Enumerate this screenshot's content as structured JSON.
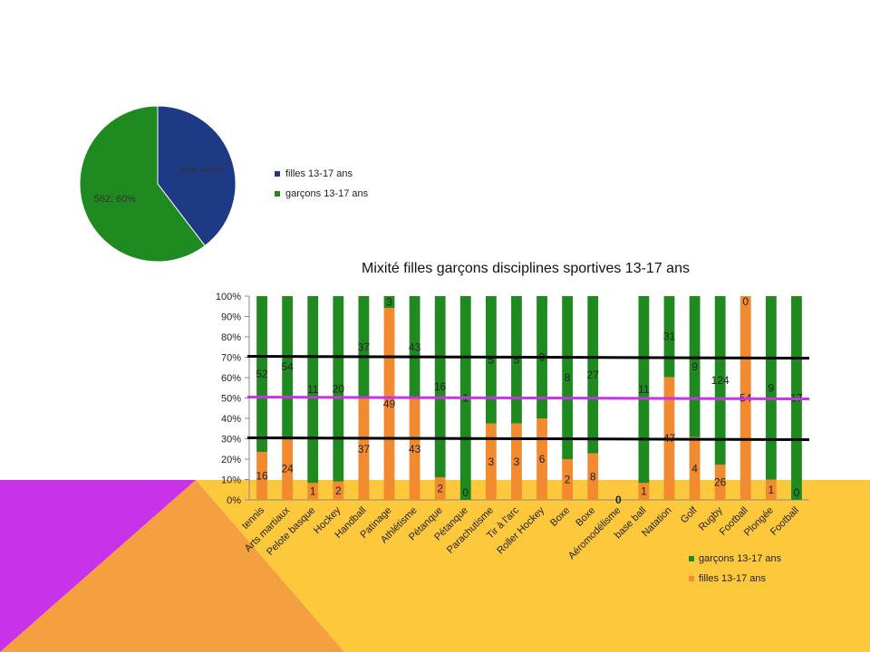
{
  "colors": {
    "navy": "#1f3a85",
    "green": "#1f8a1f",
    "orange": "#f28a30",
    "magenta": "#c832e8",
    "deco_orange": "#f4a040",
    "deco_yellow": "#fdc83c",
    "deco_magenta": "#c832e8"
  },
  "chart_data": [
    {
      "type": "pie",
      "slices": [
        {
          "name": "filles 13-17 ans",
          "value": 369,
          "label": "369; 40%",
          "color": "#1f3a85"
        },
        {
          "name": "garçons 13-17 ans",
          "value": 562,
          "label": "562; 60%",
          "color": "#1f8a1f"
        }
      ],
      "legend": [
        "filles 13-17 ans",
        "garçons 13-17 ans"
      ],
      "legend_position": "right"
    },
    {
      "type": "bar",
      "stacked": "percent",
      "title": "Mixité filles garçons disciplines sportives 13-17 ans",
      "categories": [
        "tennis",
        "Arts martiaux",
        "Pelote basque",
        "Hockey",
        "Handball",
        "Patinage",
        "Athlétisme",
        "Pétanque",
        "Pétanque",
        "Parachutisme",
        "Tir à l'arc",
        "Roller Hockey",
        "Boxe",
        "Boxe",
        "Aéromodélisme",
        "base ball",
        "Natation",
        "Golf",
        "Rugby",
        "Football",
        "Plongée",
        "Football"
      ],
      "series": [
        {
          "name": "filles 13-17 ans",
          "color": "#f28a30",
          "values": [
            16,
            24,
            1,
            2,
            37,
            49,
            43,
            2,
            0,
            3,
            3,
            6,
            2,
            8,
            0,
            1,
            47,
            4,
            26,
            54,
            1,
            0
          ]
        },
        {
          "name": "garçons 13-17 ans",
          "color": "#1f8a1f",
          "values": [
            52,
            54,
            11,
            20,
            37,
            3,
            43,
            16,
            1,
            5,
            5,
            9,
            8,
            27,
            0,
            11,
            31,
            9,
            124,
            0,
            9,
            17
          ]
        }
      ],
      "ylim": [
        0,
        100
      ],
      "yticks": [
        "0%",
        "10%",
        "20%",
        "30%",
        "40%",
        "50%",
        "60%",
        "70%",
        "80%",
        "90%",
        "100%"
      ],
      "reference_lines": [
        {
          "value": 70,
          "color": "#000000"
        },
        {
          "value": 50,
          "color": "#c832e8"
        },
        {
          "value": 30,
          "color": "#000000"
        }
      ],
      "legend": [
        "garçons 13-17 ans",
        "filles 13-17 ans"
      ],
      "legend_position": "bottom-right"
    }
  ]
}
